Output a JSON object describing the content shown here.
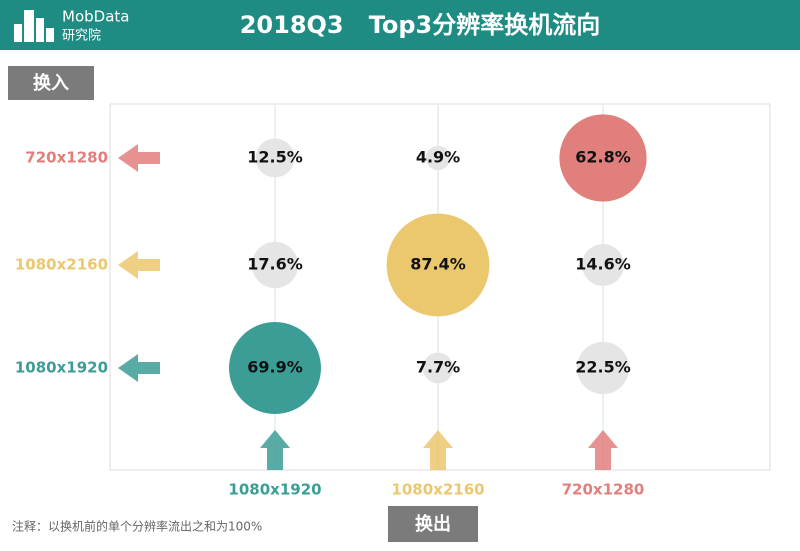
{
  "brand": {
    "name": "MobData",
    "sub": "研究院"
  },
  "chart_data": {
    "type": "bubble",
    "title": "2018Q3   Top3分辨率换机流向",
    "y_label": "换入",
    "x_label": "换出",
    "note": "注释：以换机前的单个分辨率流出之和为100%",
    "categories": [
      "1080x1920",
      "1080x2160",
      "720x1280"
    ],
    "other_color": "#e5e5e5",
    "series": [
      {
        "name": "720x1280",
        "color": "#e07f7c",
        "values": [
          12.5,
          4.9,
          62.8
        ],
        "value_labels": [
          "12.5%",
          "4.9%",
          "62.8%"
        ]
      },
      {
        "name": "1080x2160",
        "color": "#ebc76e",
        "values": [
          17.6,
          87.4,
          14.6
        ],
        "value_labels": [
          "17.6%",
          "87.4%",
          "14.6%"
        ]
      },
      {
        "name": "1080x1920",
        "color": "#3c9d96",
        "values": [
          69.9,
          7.7,
          22.5
        ],
        "value_labels": [
          "69.9%",
          "7.7%",
          "22.5%"
        ]
      }
    ]
  }
}
